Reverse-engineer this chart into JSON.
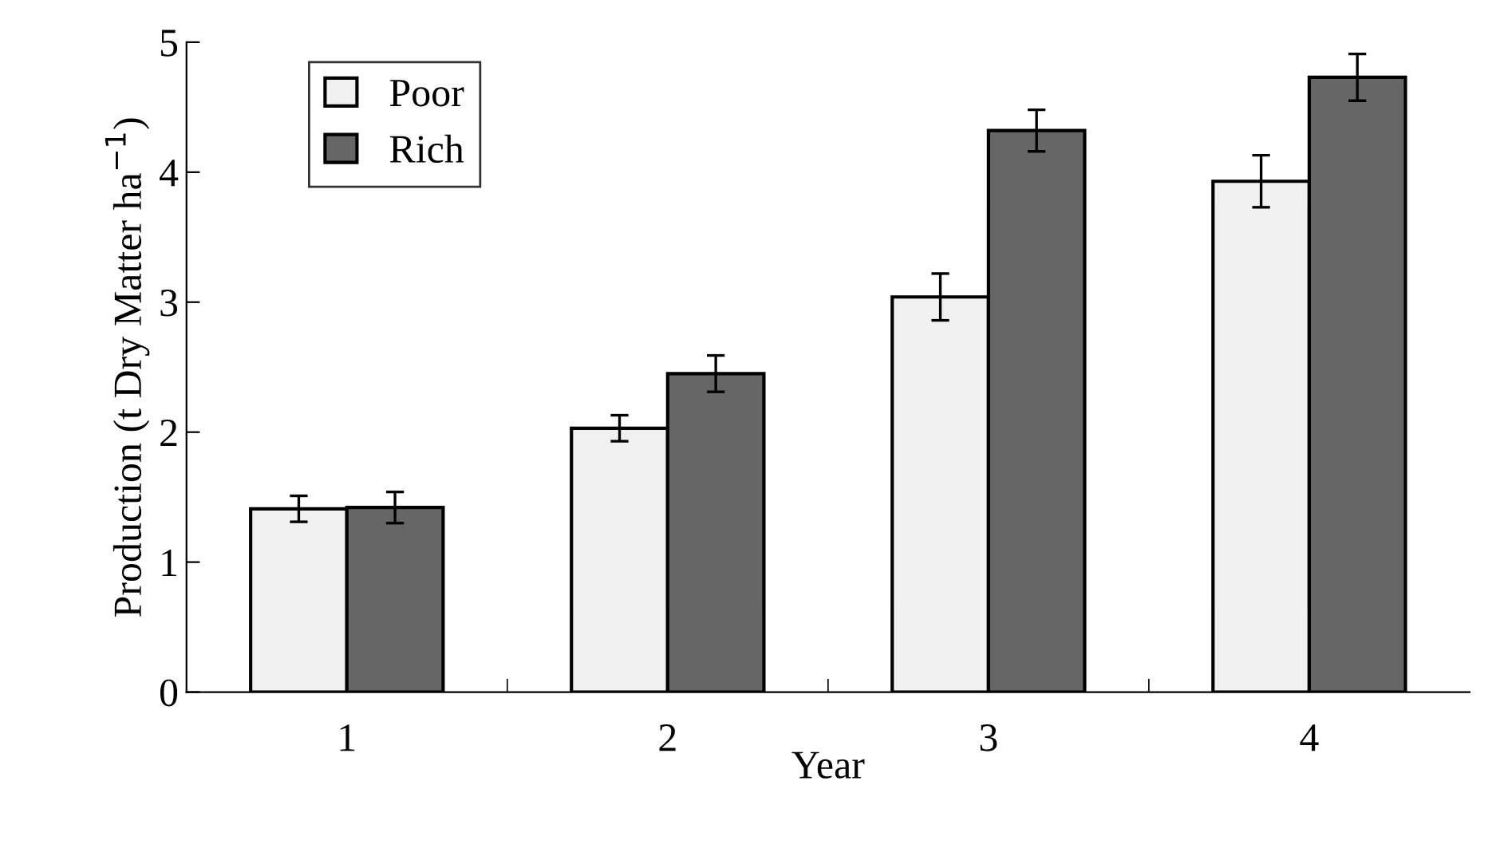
{
  "chart_data": {
    "type": "bar",
    "xlabel": "Year",
    "ylabel": "Production (t Dry Matter ha$^{−1}$)",
    "categories": [
      "1",
      "2",
      "3",
      "4"
    ],
    "series": [
      {
        "name": "Poor",
        "color": "#f0f0f0",
        "values": [
          1.41,
          2.03,
          3.04,
          3.93
        ],
        "errors": [
          0.1,
          0.1,
          0.18,
          0.2
        ]
      },
      {
        "name": "Rich",
        "color": "#666666",
        "values": [
          1.42,
          2.45,
          4.32,
          4.73
        ],
        "errors": [
          0.12,
          0.14,
          0.16,
          0.18
        ]
      }
    ],
    "ylim": [
      0,
      5
    ],
    "yticks": [
      0,
      1,
      2,
      3,
      4,
      5
    ],
    "grid": false,
    "legend": "top left"
  }
}
